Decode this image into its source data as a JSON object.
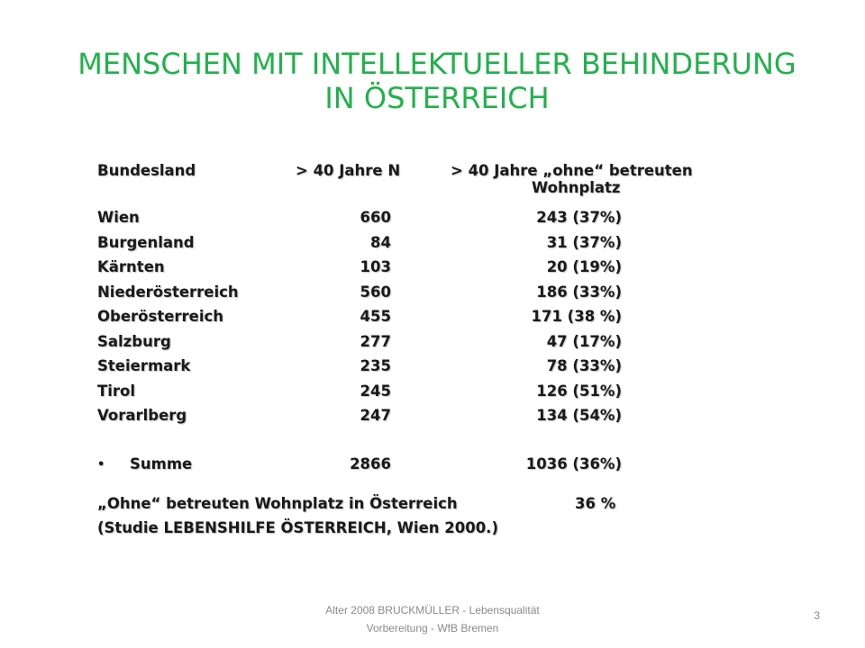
{
  "title_line1": "MENSCHEN MIT INTELLEKTUELLER BEHINDERUNG",
  "title_line2": "IN ÖSTERREICH",
  "table": {
    "headers": {
      "col1": "Bundesland",
      "col2": "> 40 Jahre N",
      "col3_line1": "> 40 Jahre „ohne“ betreuten",
      "col3_line2": "Wohnplatz"
    },
    "rows": [
      {
        "land": "Wien",
        "n": "660",
        "ohne": "243 (37%)"
      },
      {
        "land": "Burgenland",
        "n": "84",
        "ohne": "31 (37%)"
      },
      {
        "land": "Kärnten",
        "n": "103",
        "ohne": "20 (19%)"
      },
      {
        "land": "Niederösterreich",
        "n": "560",
        "ohne": "186 (33%)"
      },
      {
        "land": "Oberösterreich",
        "n": "455",
        "ohne": "171 (38 %)"
      },
      {
        "land": "Salzburg",
        "n": "277",
        "ohne": "47 (17%)"
      },
      {
        "land": "Steiermark",
        "n": "235",
        "ohne": "78 (33%)"
      },
      {
        "land": "Tirol",
        "n": "245",
        "ohne": "126 (51%)"
      },
      {
        "land": "Vorarlberg",
        "n": "247",
        "ohne": "134 (54%)"
      }
    ],
    "summary": {
      "label": "Summe",
      "n": "2866",
      "ohne": "1036 (36%)"
    }
  },
  "note": {
    "line1": "„Ohne“ betreuten Wohnplatz in Österreich",
    "line1_value": "36 %",
    "line2": "(Studie LEBENSHILFE ÖSTERREICH, Wien 2000.)"
  },
  "footer": {
    "line1": "Alter 2008 BRUCKMÜLLER - Lebensqualität",
    "line2": "Vorbereitung - WfB Bremen"
  },
  "page_number": "3",
  "colors": {
    "title": "#22b14c",
    "text": "#1a1a1a",
    "footer": "#8a8a8a"
  }
}
